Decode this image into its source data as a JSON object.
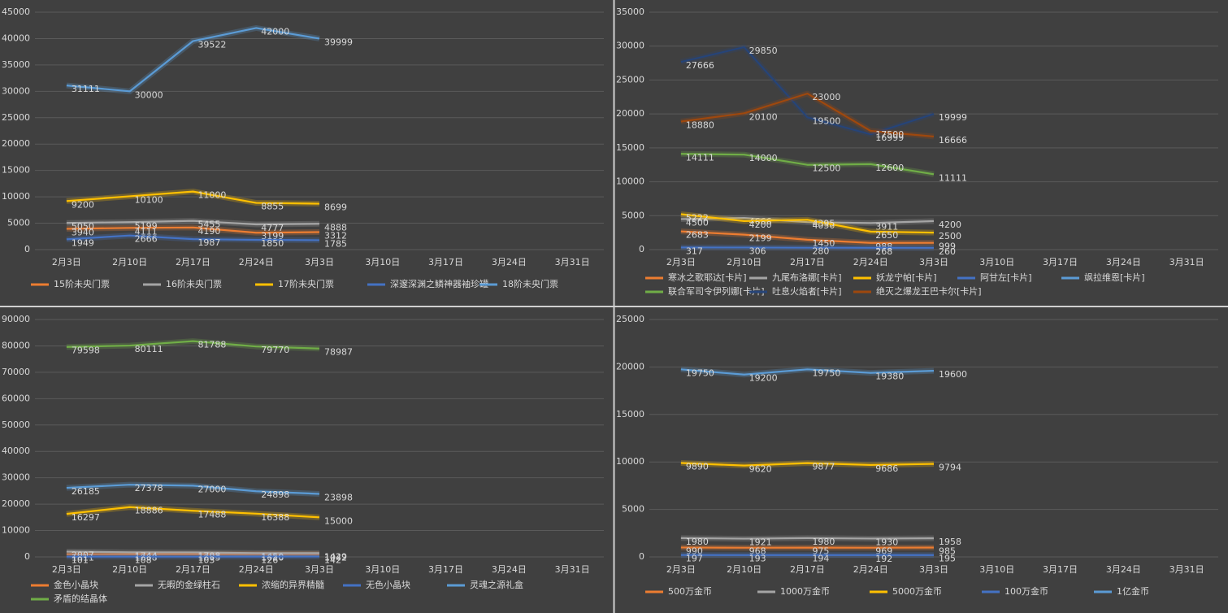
{
  "chart_data": [
    {
      "type": "line",
      "categories": [
        "2月3日",
        "2月10日",
        "2月17日",
        "2月24日",
        "3月3日",
        "3月10日",
        "3月17日",
        "3月24日",
        "3月31日"
      ],
      "ylim": [
        0,
        45000
      ],
      "yticks": [
        0,
        5000,
        10000,
        15000,
        20000,
        25000,
        30000,
        35000,
        40000,
        45000
      ],
      "grid": true,
      "series": [
        {
          "name": "15阶未央门票",
          "color": "#ed7d31",
          "values": [
            3940,
            4111,
            4190,
            3199,
            3312,
            null,
            null,
            null,
            null
          ]
        },
        {
          "name": "16阶未央门票",
          "color": "#a5a5a5",
          "values": [
            5050,
            5199,
            5455,
            4777,
            4888,
            null,
            null,
            null,
            null
          ]
        },
        {
          "name": "17阶未央门票",
          "color": "#ffc000",
          "values": [
            9200,
            10100,
            11000,
            8855,
            8699,
            null,
            null,
            null,
            null
          ]
        },
        {
          "name": "深邃深渊之鳞神器袖珍罐",
          "color": "#4472c4",
          "values": [
            1949,
            2666,
            1987,
            1850,
            1785,
            null,
            null,
            null,
            null
          ]
        },
        {
          "name": "18阶未央门票",
          "color": "#5b9bd5",
          "values": [
            31111,
            30000,
            39522,
            42000,
            39999,
            null,
            null,
            null,
            null
          ]
        }
      ]
    },
    {
      "type": "line",
      "categories": [
        "2月3日",
        "2月10日",
        "2月17日",
        "2月24日",
        "3月3日",
        "3月10日",
        "3月17日",
        "3月24日",
        "3月31日"
      ],
      "ylim": [
        0,
        35000
      ],
      "yticks": [
        0,
        5000,
        10000,
        15000,
        20000,
        25000,
        30000,
        35000
      ],
      "grid": true,
      "series": [
        {
          "name": "寒冰之歌耶达[卡片]",
          "color": "#ed7d31",
          "values": [
            2683,
            2199,
            1450,
            988,
            999,
            null,
            null,
            null,
            null
          ]
        },
        {
          "name": "九尾布洛娜[卡片]",
          "color": "#a5a5a5",
          "values": [
            4500,
            4666,
            4050,
            3911,
            4200,
            null,
            null,
            null,
            null
          ]
        },
        {
          "name": "妖龙宁帕[卡片]",
          "color": "#ffc000",
          "values": [
            5222,
            4200,
            4395,
            2650,
            2500,
            null,
            null,
            null,
            null
          ]
        },
        {
          "name": "阿甘左[卡片]",
          "color": "#4472c4",
          "values": [
            317,
            306,
            280,
            268,
            260,
            null,
            null,
            null,
            null
          ]
        },
        {
          "name": "飒拉维恩[卡片]",
          "color": "#5b9bd5",
          "values": [
            null,
            null,
            null,
            null,
            null,
            null,
            null,
            null,
            null
          ]
        },
        {
          "name": "联合军司令伊列娜[卡片]",
          "color": "#70ad47",
          "values": [
            14111,
            14000,
            12500,
            12600,
            11111,
            null,
            null,
            null,
            null
          ]
        },
        {
          "name": "吐息火焰者[卡片]",
          "color": "#264478",
          "values": [
            27666,
            29850,
            19500,
            16999,
            19999,
            null,
            null,
            null,
            null
          ]
        },
        {
          "name": "绝灭之爆龙王巴卡尔[卡片]",
          "color": "#9e480e",
          "values": [
            18880,
            20100,
            23000,
            17500,
            16666,
            null,
            null,
            null,
            null
          ]
        }
      ]
    },
    {
      "type": "line",
      "categories": [
        "2月3日",
        "2月10日",
        "2月17日",
        "2月24日",
        "3月3日",
        "3月10日",
        "3月17日",
        "3月24日",
        "3月31日"
      ],
      "ylim": [
        0,
        90000
      ],
      "yticks": [
        0,
        10000,
        20000,
        30000,
        40000,
        50000,
        60000,
        70000,
        80000,
        90000
      ],
      "grid": true,
      "series": [
        {
          "name": "金色小晶块",
          "color": "#ed7d31",
          "values": [
            1011,
            1008,
            1003,
            1026,
            1042,
            null,
            null,
            null,
            null
          ]
        },
        {
          "name": "无暇的金绿柱石",
          "color": "#a5a5a5",
          "values": [
            2007,
            1744,
            1708,
            1450,
            1429,
            null,
            null,
            null,
            null
          ]
        },
        {
          "name": "浓缩的异界精髓",
          "color": "#ffc000",
          "values": [
            16297,
            18886,
            17488,
            16388,
            15000,
            null,
            null,
            null,
            null
          ]
        },
        {
          "name": "无色小晶块",
          "color": "#4472c4",
          "values": [
            101,
            108,
            103,
            126,
            142,
            null,
            null,
            null,
            null
          ]
        },
        {
          "name": "灵魂之源礼盒",
          "color": "#5b9bd5",
          "values": [
            26185,
            27378,
            27000,
            24898,
            23898,
            null,
            null,
            null,
            null
          ]
        },
        {
          "name": "矛盾的结晶体",
          "color": "#70ad47",
          "values": [
            79598,
            80111,
            81788,
            79770,
            78987,
            null,
            null,
            null,
            null
          ]
        }
      ]
    },
    {
      "type": "line",
      "categories": [
        "2月3日",
        "2月10日",
        "2月17日",
        "2月24日",
        "3月3日",
        "3月10日",
        "3月17日",
        "3月24日",
        "3月31日"
      ],
      "ylim": [
        0,
        25000
      ],
      "yticks": [
        0,
        5000,
        10000,
        15000,
        20000,
        25000
      ],
      "grid": true,
      "series": [
        {
          "name": "500万金币",
          "color": "#ed7d31",
          "values": [
            990,
            968,
            975,
            969,
            985,
            null,
            null,
            null,
            null
          ]
        },
        {
          "name": "1000万金币",
          "color": "#a5a5a5",
          "values": [
            1980,
            1921,
            1980,
            1930,
            1958,
            null,
            null,
            null,
            null
          ]
        },
        {
          "name": "5000万金币",
          "color": "#ffc000",
          "values": [
            9890,
            9620,
            9877,
            9686,
            9794,
            null,
            null,
            null,
            null
          ]
        },
        {
          "name": "100万金币",
          "color": "#4472c4",
          "values": [
            197,
            193,
            194,
            192,
            195,
            null,
            null,
            null,
            null
          ]
        },
        {
          "name": "1亿金币",
          "color": "#5b9bd5",
          "values": [
            19750,
            19200,
            19750,
            19380,
            19600,
            null,
            null,
            null,
            null
          ]
        }
      ]
    }
  ]
}
